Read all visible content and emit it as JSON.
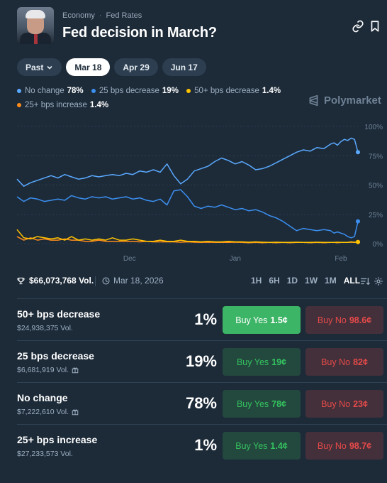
{
  "header": {
    "breadcrumbs": [
      "Economy",
      "Fed Rates"
    ],
    "title": "Fed decision in March?"
  },
  "tabs": [
    {
      "label": "Past",
      "active": false
    },
    {
      "label": "Mar 18",
      "active": true
    },
    {
      "label": "Apr 29",
      "active": false
    },
    {
      "label": "Jun 17",
      "active": false
    }
  ],
  "legend": [
    {
      "label": "No change",
      "pct": "78%",
      "color": "#5aa9ff"
    },
    {
      "label": "25 bps decrease",
      "pct": "19%",
      "color": "#3b8ff0"
    },
    {
      "label": "50+ bps decrease",
      "pct": "1.4%",
      "color": "#ffc400"
    },
    {
      "label": "25+ bps increase",
      "pct": "1.4%",
      "color": "#ff8c1a"
    }
  ],
  "brand": "Polymarket",
  "chart_data": {
    "type": "line",
    "x_tick_labels": [
      "Dec",
      "Jan",
      "Feb"
    ],
    "y_tick_labels": [
      "100%",
      "75%",
      "50%",
      "25%",
      "0%"
    ],
    "ylim": [
      0,
      100
    ],
    "series": [
      {
        "name": "No change",
        "color": "#5aa9ff",
        "x": [
          0,
          2,
          4,
          6,
          8,
          10,
          12,
          14,
          16,
          18,
          20,
          22,
          24,
          26,
          28,
          30,
          32,
          34,
          36,
          38,
          40,
          42,
          44,
          46,
          48,
          50,
          52,
          54,
          56,
          58,
          60,
          62,
          64,
          66,
          68,
          70,
          72,
          74,
          76,
          78,
          80,
          82,
          84,
          86,
          88,
          90,
          92,
          93,
          94,
          95,
          96,
          97,
          98,
          99,
          100
        ],
        "values": [
          55,
          49,
          52,
          54,
          56,
          58,
          56,
          59,
          57,
          55,
          56,
          58,
          57,
          58,
          59,
          58,
          60,
          59,
          62,
          61,
          63,
          61,
          68,
          58,
          51,
          55,
          62,
          64,
          66,
          70,
          73,
          71,
          68,
          70,
          67,
          63,
          64,
          66,
          69,
          72,
          75,
          78,
          80,
          79,
          82,
          81,
          85,
          86,
          84,
          87,
          89,
          88,
          90,
          89,
          78
        ]
      },
      {
        "name": "25 bps decrease",
        "color": "#3b8ff0",
        "x": [
          0,
          2,
          4,
          6,
          8,
          10,
          12,
          14,
          16,
          18,
          20,
          22,
          24,
          26,
          28,
          30,
          32,
          34,
          36,
          38,
          40,
          42,
          44,
          46,
          48,
          50,
          52,
          54,
          56,
          58,
          60,
          62,
          64,
          66,
          68,
          70,
          72,
          74,
          76,
          78,
          80,
          82,
          84,
          86,
          88,
          90,
          92,
          93,
          94,
          95,
          96,
          97,
          98,
          99,
          100
        ],
        "values": [
          40,
          36,
          39,
          38,
          36,
          37,
          38,
          37,
          41,
          39,
          38,
          40,
          39,
          40,
          38,
          39,
          40,
          38,
          39,
          37,
          36,
          38,
          33,
          45,
          46,
          40,
          32,
          30,
          32,
          31,
          33,
          31,
          29,
          30,
          28,
          29,
          27,
          24,
          22,
          19,
          15,
          11,
          13,
          12,
          11,
          12,
          11,
          9,
          10,
          9,
          8,
          6,
          5,
          6,
          19
        ]
      },
      {
        "name": "50+ bps decrease",
        "color": "#ffc400",
        "x": [
          0,
          2,
          4,
          6,
          8,
          10,
          12,
          14,
          16,
          18,
          20,
          22,
          24,
          26,
          28,
          30,
          32,
          34,
          36,
          38,
          40,
          42,
          44,
          46,
          48,
          50,
          52,
          54,
          56,
          58,
          60,
          62,
          64,
          66,
          68,
          70,
          72,
          74,
          76,
          78,
          80,
          82,
          84,
          86,
          88,
          90,
          92,
          93,
          94,
          95,
          96,
          97,
          98,
          99,
          100
        ],
        "values": [
          12,
          5,
          4,
          6,
          5,
          4,
          5,
          3,
          6,
          3,
          4,
          3,
          4,
          3,
          5,
          3,
          3,
          4,
          3,
          2,
          2,
          3,
          2,
          2,
          3,
          2,
          2,
          1.5,
          2,
          1.5,
          1.5,
          2,
          1.5,
          1.5,
          1.2,
          1.5,
          1.2,
          1,
          1.2,
          1,
          1,
          1.2,
          1,
          1,
          1.2,
          1,
          1,
          1,
          1.2,
          1,
          1,
          1,
          1.5,
          1.2,
          1.4
        ]
      },
      {
        "name": "25+ bps increase",
        "color": "#ff8c1a",
        "x": [
          0,
          2,
          4,
          6,
          8,
          10,
          12,
          14,
          16,
          18,
          20,
          22,
          24,
          26,
          28,
          30,
          32,
          34,
          36,
          38,
          40,
          42,
          44,
          46,
          48,
          50,
          52,
          54,
          56,
          58,
          60,
          62,
          64,
          66,
          68,
          70,
          72,
          74,
          76,
          78,
          80,
          82,
          84,
          86,
          88,
          90,
          92,
          93,
          94,
          95,
          96,
          97,
          98,
          99,
          100
        ],
        "values": [
          6,
          3,
          5,
          3,
          4,
          3,
          3,
          4,
          3,
          3,
          2,
          2,
          3,
          2,
          2,
          2,
          2,
          2,
          1.5,
          2,
          1.5,
          1.5,
          1.5,
          1.5,
          1.2,
          1.5,
          1.2,
          1,
          1.2,
          1,
          1,
          1,
          1.2,
          1,
          0.8,
          1,
          0.8,
          1,
          0.8,
          1,
          0.8,
          1,
          1,
          0.8,
          1,
          0.8,
          1,
          1,
          0.8,
          1,
          1,
          1,
          1.2,
          1,
          1.4
        ]
      }
    ]
  },
  "stats": {
    "volume": "$66,073,768 Vol.",
    "date": "Mar 18, 2026",
    "ranges": [
      "1H",
      "6H",
      "1D",
      "1W",
      "1M",
      "ALL"
    ],
    "active_range": "ALL"
  },
  "outcomes": [
    {
      "name": "50+ bps decrease",
      "volume": "$24,938,375 Vol.",
      "gift": false,
      "pct": "1%",
      "yes_label": "Buy Yes",
      "yes_price": "1.5¢",
      "no_label": "Buy No",
      "no_price": "98.6¢",
      "highlight": true
    },
    {
      "name": "25 bps decrease",
      "volume": "$6,681,919 Vol.",
      "gift": true,
      "pct": "19%",
      "yes_label": "Buy Yes",
      "yes_price": "19¢",
      "no_label": "Buy No",
      "no_price": "82¢",
      "highlight": false
    },
    {
      "name": "No change",
      "volume": "$7,222,610 Vol.",
      "gift": true,
      "pct": "78%",
      "yes_label": "Buy Yes",
      "yes_price": "78¢",
      "no_label": "Buy No",
      "no_price": "23¢",
      "highlight": false
    },
    {
      "name": "25+ bps increase",
      "volume": "$27,233,573 Vol.",
      "gift": false,
      "pct": "1%",
      "yes_label": "Buy Yes",
      "yes_price": "1.4¢",
      "no_label": "Buy No",
      "no_price": "98.7¢",
      "highlight": false
    }
  ]
}
